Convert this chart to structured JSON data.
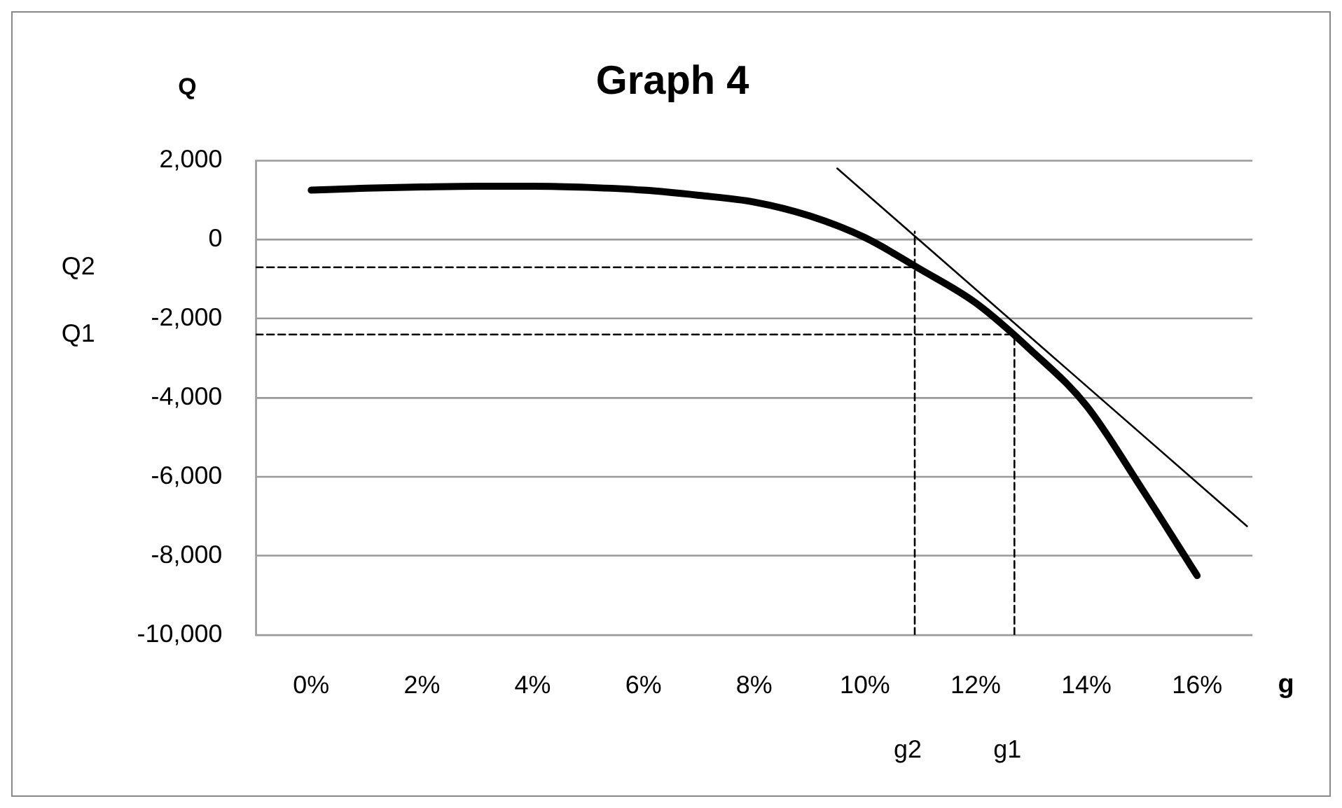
{
  "chart_data": {
    "type": "line",
    "title": "Graph 4",
    "xlabel": "g",
    "ylabel": "Q",
    "xlim": [
      -1,
      17
    ],
    "xticks": [
      {
        "value": 0,
        "label": "0%"
      },
      {
        "value": 2,
        "label": "2%"
      },
      {
        "value": 4,
        "label": "4%"
      },
      {
        "value": 6,
        "label": "6%"
      },
      {
        "value": 8,
        "label": "8%"
      },
      {
        "value": 10,
        "label": "10%"
      },
      {
        "value": 12,
        "label": "12%"
      },
      {
        "value": 14,
        "label": "14%"
      },
      {
        "value": 16,
        "label": "16%"
      }
    ],
    "ylim": [
      -10000,
      2000
    ],
    "yticks": [
      {
        "value": -10000,
        "label": "-10,000"
      },
      {
        "value": -8000,
        "label": "-8,000"
      },
      {
        "value": -6000,
        "label": "-6,000"
      },
      {
        "value": -4000,
        "label": "-4,000"
      },
      {
        "value": -2000,
        "label": "-2,000"
      },
      0,
      {
        "value": 2000,
        "label": "2,000"
      }
    ],
    "grid": "y",
    "legend": false,
    "marker": "none",
    "series": [
      {
        "color": "#000000",
        "line_style": "solid",
        "x": [
          0,
          1,
          2,
          3,
          4,
          5,
          6,
          7,
          8,
          9,
          10,
          11,
          12,
          13,
          14,
          15,
          16
        ],
        "values": [
          1250,
          1300,
          1330,
          1350,
          1350,
          1320,
          1250,
          1120,
          950,
          600,
          50,
          -750,
          -1600,
          -2800,
          -4200,
          -6300,
          -8500
        ]
      },
      {
        "color": "#000000",
        "line_style": "solid",
        "x": [
          9.5,
          16.9
        ],
        "values": [
          1800,
          -7250
        ]
      },
      {
        "type": "line",
        "color": "#000000",
        "line_style": "dashed",
        "x": [
          -1,
          10.9
        ],
        "values": [
          -700,
          -700
        ]
      },
      {
        "type": "line",
        "color": "#000000",
        "line_style": "dashed",
        "x": [
          10.9,
          10.9
        ],
        "values": [
          -10000,
          200
        ]
      },
      {
        "type": "line",
        "color": "#000000",
        "line_style": "dashed",
        "x": [
          -1,
          12.7
        ],
        "values": [
          -2400,
          -2400
        ]
      },
      {
        "type": "line",
        "color": "#000000",
        "line_style": "dashed",
        "x": [
          12.7,
          12.7
        ],
        "values": [
          -10000,
          -2400
        ]
      }
    ],
    "annotations": [
      "Q2",
      "g2",
      "Q1",
      "g1"
    ]
  }
}
